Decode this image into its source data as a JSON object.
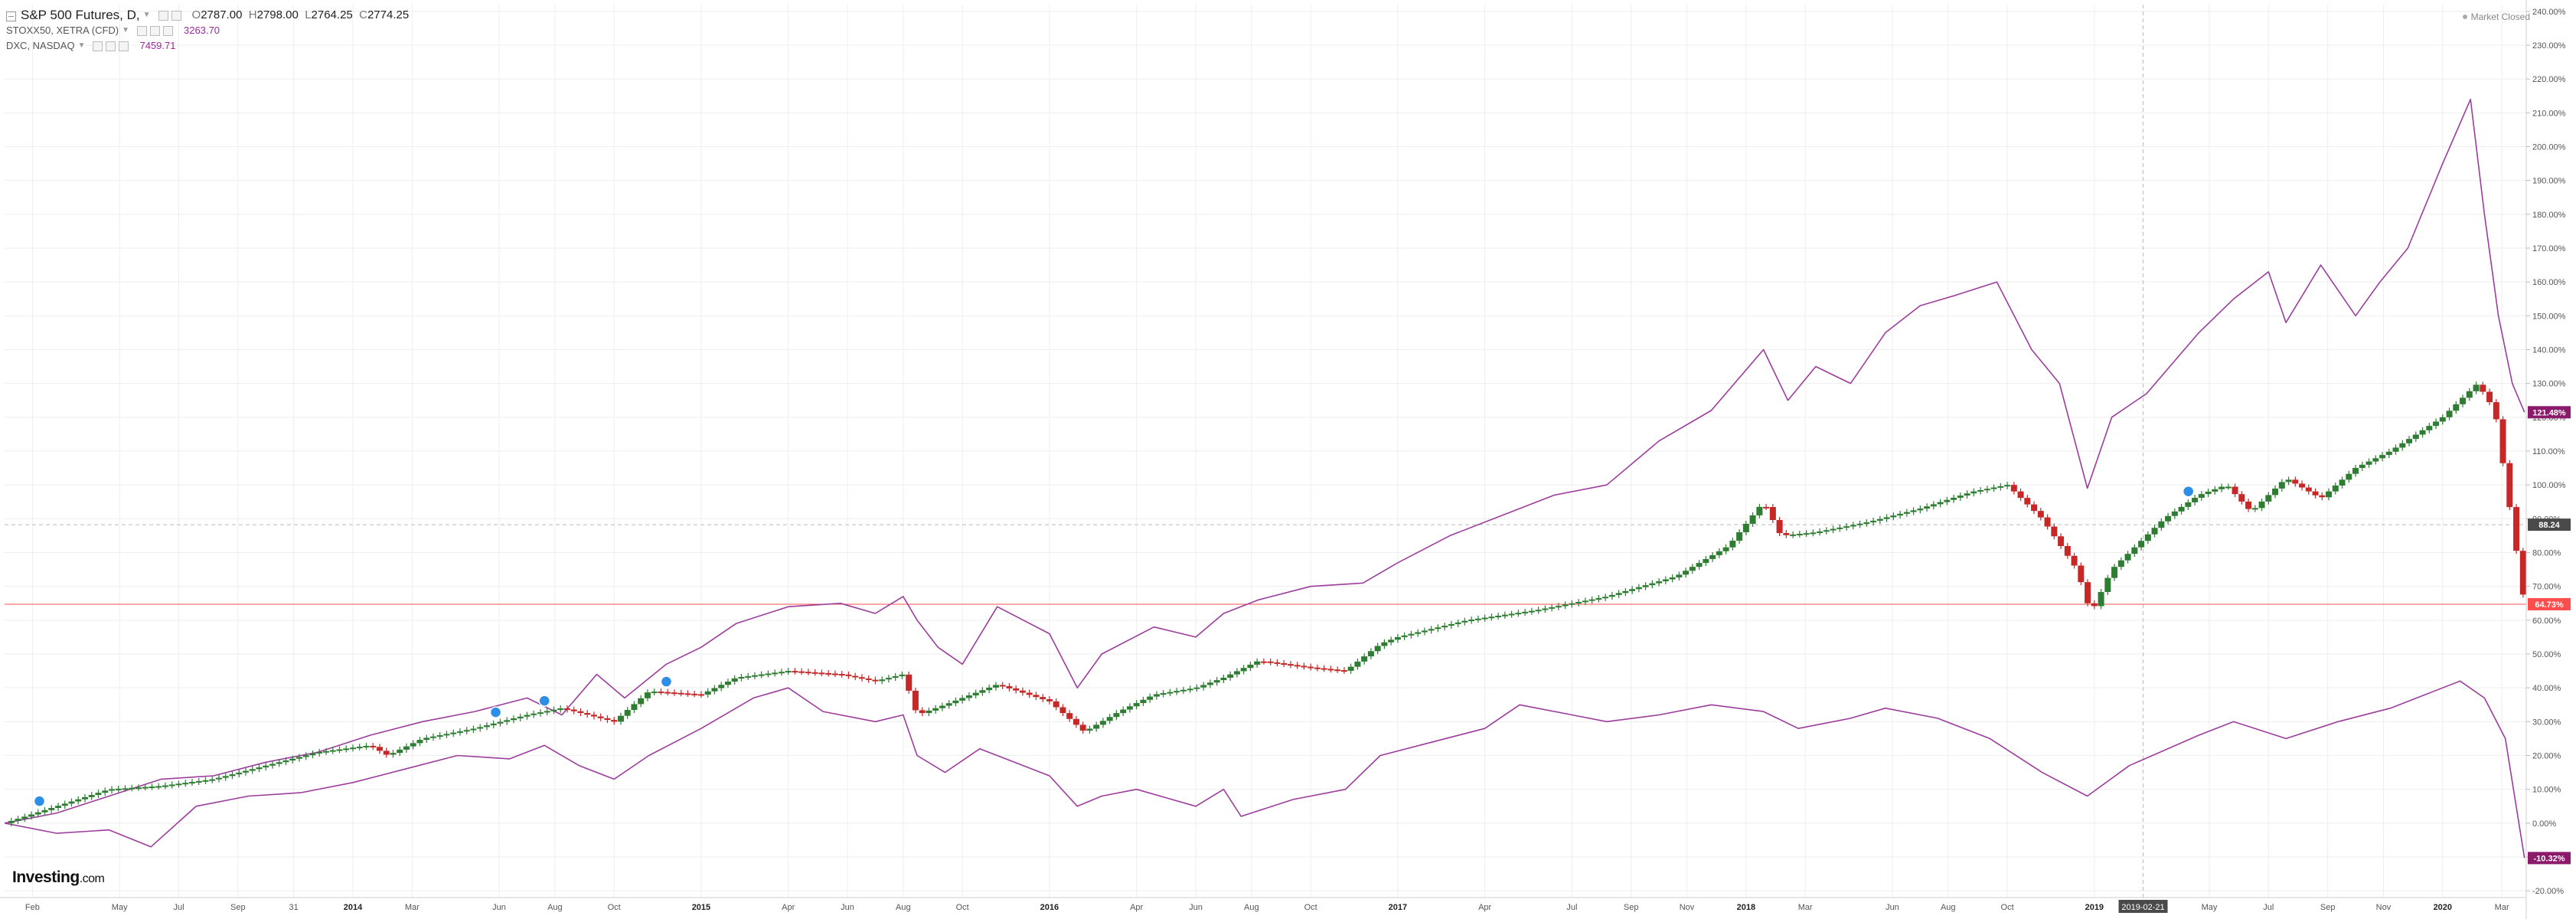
{
  "header": {
    "main_series": "S&P 500 Futures, D,",
    "ohlc": {
      "open": "2787.00",
      "high": "2798.00",
      "low": "2764.25",
      "close": "2774.25"
    },
    "ohlc_prefixes": {
      "open": "O",
      "high": "H",
      "low": "L",
      "close": "C"
    },
    "compare": [
      {
        "name": "STOXX50, XETRA (CFD)",
        "value": "3263.70"
      },
      {
        "name": "DXC, NASDAQ",
        "value": "7459.71"
      }
    ]
  },
  "market_status": "Market Closed",
  "logo": {
    "brand": "Investing",
    "suffix": ".com"
  },
  "colors": {
    "compare_line": "#9c3d9c",
    "candle_up": "#2e7d32",
    "candle_down": "#c62828",
    "price_line": "#ff4d4d",
    "badge_purple": "#8b1a6b",
    "badge_red": "#ff4d4d",
    "badge_dark": "#4a4a4a",
    "grid": "#eeeeee",
    "marker": "#2d8ee8"
  },
  "chart_data": {
    "type": "line",
    "title": "S&P 500 Futures, D,",
    "y_axis": {
      "unit": "percent change",
      "ylim": [
        -22,
        242
      ],
      "ticks": [
        -20,
        -10,
        0,
        10,
        20,
        30,
        40,
        50,
        60,
        70,
        80,
        90,
        100,
        110,
        120,
        130,
        140,
        150,
        160,
        170,
        180,
        190,
        200,
        210,
        220,
        230,
        240
      ],
      "tick_labels": [
        "-20.00%",
        "-10.00%",
        "0.00%",
        "10.00%",
        "20.00%",
        "30.00%",
        "40.00%",
        "50.00%",
        "60.00%",
        "70.00%",
        "80.00%",
        "90.00%",
        "100.00%",
        "110.00%",
        "120.00%",
        "130.00%",
        "140.00%",
        "150.00%",
        "160.00%",
        "170.00%",
        "180.00%",
        "190.00%",
        "200.00%",
        "210.00%",
        "220.00%",
        "230.00%",
        "240.00%"
      ]
    },
    "x_axis": {
      "ticks": [
        {
          "label": "Feb",
          "t": 2013.08
        },
        {
          "label": "May",
          "t": 2013.33
        },
        {
          "label": "Jul",
          "t": 2013.5
        },
        {
          "label": "Sep",
          "t": 2013.67
        },
        {
          "label": "31",
          "t": 2013.83
        },
        {
          "label": "2014",
          "t": 2014.0,
          "bold": true
        },
        {
          "label": "Mar",
          "t": 2014.17
        },
        {
          "label": "Jun",
          "t": 2014.42
        },
        {
          "label": "Aug",
          "t": 2014.58
        },
        {
          "label": "Oct",
          "t": 2014.75
        },
        {
          "label": "2015",
          "t": 2015.0,
          "bold": true
        },
        {
          "label": "Apr",
          "t": 2015.25
        },
        {
          "label": "Jun",
          "t": 2015.42
        },
        {
          "label": "Aug",
          "t": 2015.58
        },
        {
          "label": "Oct",
          "t": 2015.75
        },
        {
          "label": "2016",
          "t": 2016.0,
          "bold": true
        },
        {
          "label": "Apr",
          "t": 2016.25
        },
        {
          "label": "Jun",
          "t": 2016.42
        },
        {
          "label": "Aug",
          "t": 2016.58
        },
        {
          "label": "Oct",
          "t": 2016.75
        },
        {
          "label": "2017",
          "t": 2017.0,
          "bold": true
        },
        {
          "label": "Apr",
          "t": 2017.25
        },
        {
          "label": "Jul",
          "t": 2017.5
        },
        {
          "label": "Sep",
          "t": 2017.67
        },
        {
          "label": "Nov",
          "t": 2017.83
        },
        {
          "label": "2018",
          "t": 2018.0,
          "bold": true
        },
        {
          "label": "Mar",
          "t": 2018.17
        },
        {
          "label": "Jun",
          "t": 2018.42
        },
        {
          "label": "Aug",
          "t": 2018.58
        },
        {
          "label": "Oct",
          "t": 2018.75
        },
        {
          "label": "2019",
          "t": 2019.0,
          "bold": true
        },
        {
          "label": "May",
          "t": 2019.33
        },
        {
          "label": "Jul",
          "t": 2019.5
        },
        {
          "label": "Sep",
          "t": 2019.67
        },
        {
          "label": "Nov",
          "t": 2019.83
        },
        {
          "label": "2020",
          "t": 2020.0,
          "bold": true
        },
        {
          "label": "Mar",
          "t": 2020.17
        }
      ],
      "xlim": [
        2013.0,
        2020.24
      ],
      "crosshair": {
        "label": "2019-02-21",
        "t": 2019.14
      }
    },
    "price_line": {
      "value": 64.73,
      "label": "64.73%"
    },
    "crosshair_value": {
      "value": 88.24,
      "label": "88.24"
    },
    "end_badges": [
      {
        "series": "DXC, NASDAQ",
        "value": 121.48,
        "label": "121.48%"
      },
      {
        "series": "STOXX50, XETRA (CFD)",
        "value": -10.32,
        "label": "-10.32%"
      }
    ],
    "markers_t": [
      2013.1,
      2014.41,
      2014.55,
      2014.9,
      2019.27
    ],
    "series": [
      {
        "name": "DXC, NASDAQ",
        "style": "line",
        "points": [
          [
            2013.0,
            0
          ],
          [
            2013.15,
            3
          ],
          [
            2013.3,
            8
          ],
          [
            2013.45,
            13
          ],
          [
            2013.6,
            14
          ],
          [
            2013.75,
            18
          ],
          [
            2013.9,
            21
          ],
          [
            2014.05,
            26
          ],
          [
            2014.2,
            30
          ],
          [
            2014.35,
            33
          ],
          [
            2014.5,
            37
          ],
          [
            2014.6,
            32
          ],
          [
            2014.7,
            44
          ],
          [
            2014.78,
            37
          ],
          [
            2014.9,
            47
          ],
          [
            2015.0,
            52
          ],
          [
            2015.1,
            59
          ],
          [
            2015.25,
            64
          ],
          [
            2015.4,
            65
          ],
          [
            2015.5,
            62
          ],
          [
            2015.58,
            67
          ],
          [
            2015.62,
            60
          ],
          [
            2015.68,
            52
          ],
          [
            2015.75,
            47
          ],
          [
            2015.85,
            64
          ],
          [
            2016.0,
            56
          ],
          [
            2016.08,
            40
          ],
          [
            2016.15,
            50
          ],
          [
            2016.3,
            58
          ],
          [
            2016.42,
            55
          ],
          [
            2016.5,
            62
          ],
          [
            2016.6,
            66
          ],
          [
            2016.75,
            70
          ],
          [
            2016.9,
            71
          ],
          [
            2017.0,
            77
          ],
          [
            2017.15,
            85
          ],
          [
            2017.3,
            91
          ],
          [
            2017.45,
            97
          ],
          [
            2017.6,
            100
          ],
          [
            2017.75,
            113
          ],
          [
            2017.9,
            122
          ],
          [
            2018.05,
            140
          ],
          [
            2018.12,
            125
          ],
          [
            2018.2,
            135
          ],
          [
            2018.3,
            130
          ],
          [
            2018.4,
            145
          ],
          [
            2018.5,
            153
          ],
          [
            2018.6,
            156
          ],
          [
            2018.72,
            160
          ],
          [
            2018.82,
            140
          ],
          [
            2018.9,
            130
          ],
          [
            2018.98,
            99
          ],
          [
            2019.05,
            120
          ],
          [
            2019.15,
            127
          ],
          [
            2019.3,
            145
          ],
          [
            2019.4,
            155
          ],
          [
            2019.5,
            163
          ],
          [
            2019.55,
            148
          ],
          [
            2019.65,
            165
          ],
          [
            2019.75,
            150
          ],
          [
            2019.82,
            160
          ],
          [
            2019.9,
            170
          ],
          [
            2020.0,
            195
          ],
          [
            2020.08,
            214
          ],
          [
            2020.12,
            180
          ],
          [
            2020.16,
            150
          ],
          [
            2020.2,
            130
          ],
          [
            2020.235,
            121.48
          ]
        ]
      },
      {
        "name": "S&P 500 Futures",
        "style": "candles",
        "points": [
          [
            2013.0,
            0
          ],
          [
            2013.15,
            5
          ],
          [
            2013.3,
            10
          ],
          [
            2013.45,
            11
          ],
          [
            2013.6,
            13
          ],
          [
            2013.75,
            17
          ],
          [
            2013.9,
            21
          ],
          [
            2014.05,
            23
          ],
          [
            2014.1,
            20
          ],
          [
            2014.2,
            25
          ],
          [
            2014.35,
            28
          ],
          [
            2014.5,
            32
          ],
          [
            2014.6,
            34
          ],
          [
            2014.75,
            30
          ],
          [
            2014.85,
            39
          ],
          [
            2015.0,
            38
          ],
          [
            2015.1,
            43
          ],
          [
            2015.25,
            45
          ],
          [
            2015.4,
            44
          ],
          [
            2015.5,
            42
          ],
          [
            2015.58,
            44
          ],
          [
            2015.62,
            32
          ],
          [
            2015.7,
            35
          ],
          [
            2015.85,
            41
          ],
          [
            2016.0,
            36
          ],
          [
            2016.1,
            27
          ],
          [
            2016.2,
            33
          ],
          [
            2016.3,
            38
          ],
          [
            2016.42,
            40
          ],
          [
            2016.5,
            43
          ],
          [
            2016.6,
            48
          ],
          [
            2016.75,
            46
          ],
          [
            2016.85,
            45
          ],
          [
            2016.95,
            53
          ],
          [
            2017.0,
            55
          ],
          [
            2017.2,
            60
          ],
          [
            2017.4,
            63
          ],
          [
            2017.6,
            67
          ],
          [
            2017.8,
            73
          ],
          [
            2017.95,
            82
          ],
          [
            2018.05,
            95
          ],
          [
            2018.1,
            85
          ],
          [
            2018.2,
            86
          ],
          [
            2018.35,
            89
          ],
          [
            2018.5,
            93
          ],
          [
            2018.65,
            98
          ],
          [
            2018.75,
            100
          ],
          [
            2018.85,
            90
          ],
          [
            2018.95,
            75
          ],
          [
            2018.99,
            62
          ],
          [
            2019.05,
            75
          ],
          [
            2019.2,
            90
          ],
          [
            2019.3,
            97
          ],
          [
            2019.38,
            100
          ],
          [
            2019.45,
            92
          ],
          [
            2019.55,
            102
          ],
          [
            2019.65,
            96
          ],
          [
            2019.75,
            105
          ],
          [
            2019.85,
            110
          ],
          [
            2020.0,
            120
          ],
          [
            2020.1,
            130
          ],
          [
            2020.15,
            122
          ],
          [
            2020.19,
            95
          ],
          [
            2020.235,
            64.73
          ]
        ]
      },
      {
        "name": "STOXX50, XETRA (CFD)",
        "style": "line",
        "points": [
          [
            2013.0,
            0
          ],
          [
            2013.15,
            -3
          ],
          [
            2013.3,
            -2
          ],
          [
            2013.42,
            -7
          ],
          [
            2013.55,
            5
          ],
          [
            2013.7,
            8
          ],
          [
            2013.85,
            9
          ],
          [
            2014.0,
            12
          ],
          [
            2014.15,
            16
          ],
          [
            2014.3,
            20
          ],
          [
            2014.45,
            19
          ],
          [
            2014.55,
            23
          ],
          [
            2014.65,
            17
          ],
          [
            2014.75,
            13
          ],
          [
            2014.85,
            20
          ],
          [
            2015.0,
            28
          ],
          [
            2015.15,
            37
          ],
          [
            2015.25,
            40
          ],
          [
            2015.35,
            33
          ],
          [
            2015.5,
            30
          ],
          [
            2015.58,
            32
          ],
          [
            2015.62,
            20
          ],
          [
            2015.7,
            15
          ],
          [
            2015.8,
            22
          ],
          [
            2016.0,
            14
          ],
          [
            2016.08,
            5
          ],
          [
            2016.15,
            8
          ],
          [
            2016.25,
            10
          ],
          [
            2016.42,
            5
          ],
          [
            2016.5,
            10
          ],
          [
            2016.55,
            2
          ],
          [
            2016.7,
            7
          ],
          [
            2016.85,
            10
          ],
          [
            2016.95,
            20
          ],
          [
            2017.1,
            24
          ],
          [
            2017.25,
            28
          ],
          [
            2017.35,
            35
          ],
          [
            2017.5,
            32
          ],
          [
            2017.6,
            30
          ],
          [
            2017.75,
            32
          ],
          [
            2017.9,
            35
          ],
          [
            2018.05,
            33
          ],
          [
            2018.15,
            28
          ],
          [
            2018.3,
            31
          ],
          [
            2018.4,
            34
          ],
          [
            2018.55,
            31
          ],
          [
            2018.7,
            25
          ],
          [
            2018.85,
            15
          ],
          [
            2018.98,
            8
          ],
          [
            2019.1,
            17
          ],
          [
            2019.3,
            26
          ],
          [
            2019.4,
            30
          ],
          [
            2019.55,
            25
          ],
          [
            2019.7,
            30
          ],
          [
            2019.85,
            34
          ],
          [
            2019.95,
            38
          ],
          [
            2020.05,
            42
          ],
          [
            2020.12,
            37
          ],
          [
            2020.18,
            25
          ],
          [
            2020.235,
            -10.32
          ]
        ]
      }
    ]
  }
}
